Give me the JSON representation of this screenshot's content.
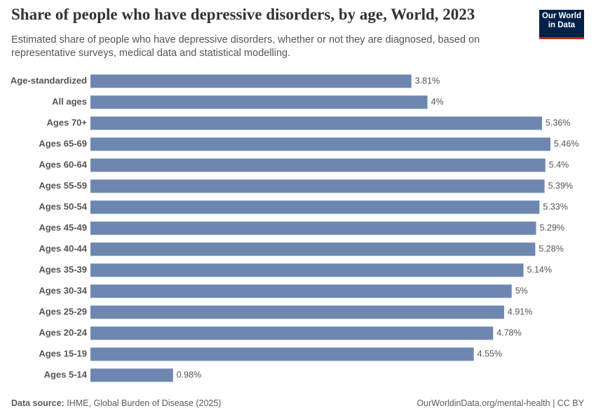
{
  "chart_data": {
    "type": "bar",
    "orientation": "horizontal",
    "title": "Share of people who have depressive disorders, by age, World, 2023",
    "subtitle": "Estimated share of people who have depressive disorders, whether or not they are diagnosed, based on representative surveys, medical data and statistical modelling.",
    "categories": [
      "Age-standardized",
      "All ages",
      "Ages 70+",
      "Ages 65-69",
      "Ages 60-64",
      "Ages 55-59",
      "Ages 50-54",
      "Ages 45-49",
      "Ages 40-44",
      "Ages 35-39",
      "Ages 30-34",
      "Ages 25-29",
      "Ages 20-24",
      "Ages 15-19",
      "Ages 5-14"
    ],
    "values": [
      3.81,
      4,
      5.36,
      5.46,
      5.4,
      5.39,
      5.33,
      5.29,
      5.28,
      5.14,
      5,
      4.91,
      4.78,
      4.55,
      0.98
    ],
    "value_labels": [
      "3.81%",
      "4%",
      "5.36%",
      "5.46%",
      "5.4%",
      "5.39%",
      "5.33%",
      "5.29%",
      "5.28%",
      "5.14%",
      "5%",
      "4.91%",
      "4.78%",
      "4.55%",
      "0.98%"
    ],
    "color": "#6d87b1"
  },
  "logo": {
    "lines": [
      "Our World",
      "in Data"
    ]
  },
  "footer": {
    "source_label": "Data source:",
    "source": "IHME, Global Burden of Disease (2025)",
    "link": "OurWorldinData.org/mental-health | CC BY"
  }
}
